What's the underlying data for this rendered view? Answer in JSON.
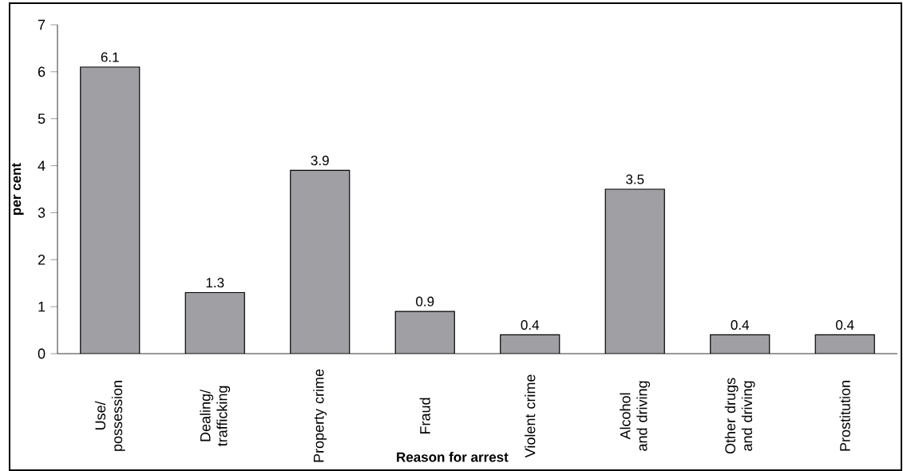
{
  "chart_data": {
    "type": "bar",
    "xlabel": "Reason for arrest",
    "ylabel": "per cent",
    "categories": [
      "Use/ possession",
      "Dealing/ trafficking",
      "Property crime",
      "Fraud",
      "Violent crime",
      "Alcohol and driving",
      "Other drugs and driving",
      "Prostitution"
    ],
    "values": [
      6.1,
      1.3,
      3.9,
      0.9,
      0.4,
      3.5,
      0.4,
      0.4
    ],
    "color": "#a0a0a4",
    "ylim": [
      0,
      7
    ],
    "yticks": [
      0,
      1,
      2,
      3,
      4,
      5,
      6,
      7
    ],
    "data_labels": true,
    "grid": false
  }
}
